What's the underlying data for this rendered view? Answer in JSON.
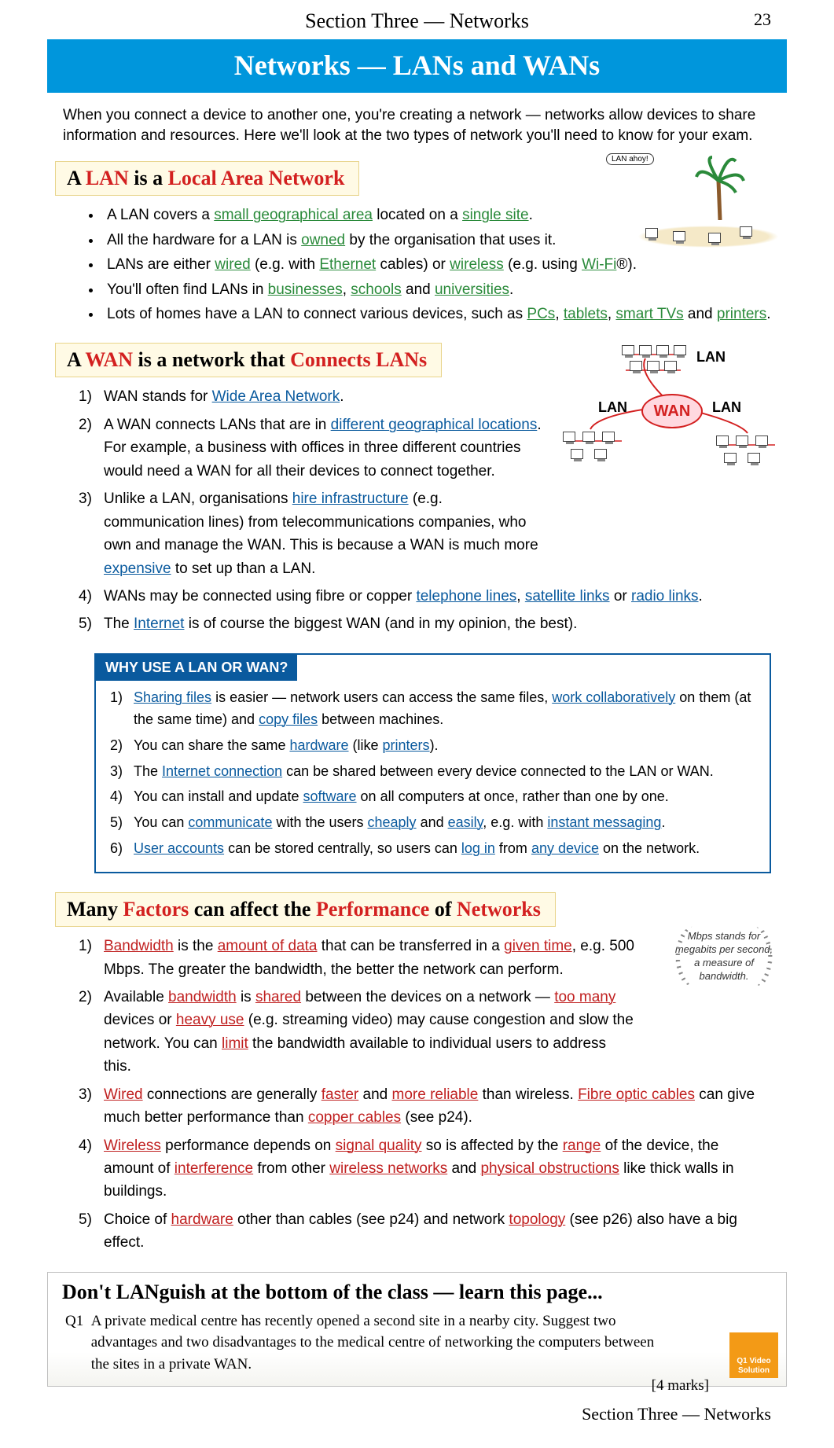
{
  "header": {
    "section": "Section Three — Networks",
    "page_num": "23"
  },
  "banner": "Networks — LANs and WANs",
  "intro": "When you connect a device to another one, you're creating a network — networks allow devices to share information and resources.  Here we'll look at the two types of network you'll need to know for your exam.",
  "lan": {
    "heading_pre": "A ",
    "heading_b1": "LAN",
    "heading_mid": " is a ",
    "heading_b2": "Local Area Network",
    "speech": "LAN ahoy!",
    "items": [
      {
        "parts": [
          {
            "t": "A LAN covers a "
          },
          {
            "t": "small geographical area",
            "c": "green-u"
          },
          {
            "t": " located on a "
          },
          {
            "t": "single site",
            "c": "green-u"
          },
          {
            "t": "."
          }
        ]
      },
      {
        "parts": [
          {
            "t": "All the hardware for a LAN is "
          },
          {
            "t": "owned",
            "c": "green-u"
          },
          {
            "t": " by the organisation that uses it."
          }
        ]
      },
      {
        "parts": [
          {
            "t": "LANs are either "
          },
          {
            "t": "wired",
            "c": "green-u"
          },
          {
            "t": " (e.g. with "
          },
          {
            "t": "Ethernet",
            "c": "green-u"
          },
          {
            "t": " cables) or "
          },
          {
            "t": "wireless",
            "c": "green-u"
          },
          {
            "t": " (e.g. using "
          },
          {
            "t": "Wi-Fi",
            "c": "green-u"
          },
          {
            "t": "®)."
          }
        ]
      },
      {
        "parts": [
          {
            "t": "You'll often find LANs in "
          },
          {
            "t": "businesses",
            "c": "green-u"
          },
          {
            "t": ", "
          },
          {
            "t": "schools",
            "c": "green-u"
          },
          {
            "t": " and "
          },
          {
            "t": "universities",
            "c": "green-u"
          },
          {
            "t": "."
          }
        ]
      },
      {
        "parts": [
          {
            "t": "Lots of homes have a LAN to connect various devices, such as "
          },
          {
            "t": "PCs",
            "c": "green-u"
          },
          {
            "t": ", "
          },
          {
            "t": "tablets",
            "c": "green-u"
          },
          {
            "t": ", "
          },
          {
            "t": "smart TVs",
            "c": "green-u"
          },
          {
            "t": " and "
          },
          {
            "t": "printers",
            "c": "green-u"
          },
          {
            "t": "."
          }
        ]
      }
    ]
  },
  "wan": {
    "heading_pre": "A ",
    "heading_b1": "WAN",
    "heading_mid": " is a network that ",
    "heading_b2": "Connects LANs",
    "cloud": "WAN",
    "lan_label": "LAN",
    "items": [
      {
        "n": "1)",
        "parts": [
          {
            "t": "WAN stands for "
          },
          {
            "t": "Wide Area Network",
            "c": "blue-u"
          },
          {
            "t": "."
          }
        ]
      },
      {
        "n": "2)",
        "parts": [
          {
            "t": "A WAN connects LANs that are in "
          },
          {
            "t": "different geographical locations",
            "c": "blue-u"
          },
          {
            "t": ". For example, a business with offices in three different countries would need a WAN for all their devices to connect together."
          }
        ]
      },
      {
        "n": "3)",
        "parts": [
          {
            "t": "Unlike a LAN, organisations "
          },
          {
            "t": "hire infrastructure",
            "c": "blue-u"
          },
          {
            "t": " (e.g. communication lines) from telecommunications companies, who own and manage the WAN. This is because a WAN is much more "
          },
          {
            "t": "expensive",
            "c": "blue-u"
          },
          {
            "t": " to set up than a LAN."
          }
        ]
      },
      {
        "n": "4)",
        "parts": [
          {
            "t": "WANs may be connected using fibre or copper "
          },
          {
            "t": "telephone lines",
            "c": "blue-u"
          },
          {
            "t": ", "
          },
          {
            "t": "satellite links",
            "c": "blue-u"
          },
          {
            "t": " or "
          },
          {
            "t": "radio links",
            "c": "blue-u"
          },
          {
            "t": "."
          }
        ]
      },
      {
        "n": "5)",
        "parts": [
          {
            "t": "The "
          },
          {
            "t": "Internet",
            "c": "blue-u"
          },
          {
            "t": " is of course the biggest WAN (and in my opinion, the best)."
          }
        ]
      }
    ]
  },
  "why": {
    "header": "WHY USE A LAN OR WAN?",
    "items": [
      {
        "n": "1)",
        "parts": [
          {
            "t": "Sharing files",
            "c": "blue-u"
          },
          {
            "t": " is easier — network users can access the same files, "
          },
          {
            "t": "work collaboratively",
            "c": "blue-u"
          },
          {
            "t": " on them (at the same time) and "
          },
          {
            "t": "copy files",
            "c": "blue-u"
          },
          {
            "t": " between machines."
          }
        ]
      },
      {
        "n": "2)",
        "parts": [
          {
            "t": "You can share the same "
          },
          {
            "t": "hardware",
            "c": "blue-u"
          },
          {
            "t": " (like "
          },
          {
            "t": "printers",
            "c": "blue-u"
          },
          {
            "t": ")."
          }
        ]
      },
      {
        "n": "3)",
        "parts": [
          {
            "t": "The "
          },
          {
            "t": "Internet connection",
            "c": "blue-u"
          },
          {
            "t": " can be shared between every device connected to the LAN or WAN."
          }
        ]
      },
      {
        "n": "4)",
        "parts": [
          {
            "t": "You can install and update "
          },
          {
            "t": "software",
            "c": "blue-u"
          },
          {
            "t": " on all computers at once, rather than one by one."
          }
        ]
      },
      {
        "n": "5)",
        "parts": [
          {
            "t": "You can "
          },
          {
            "t": "communicate",
            "c": "blue-u"
          },
          {
            "t": " with the users "
          },
          {
            "t": "cheaply",
            "c": "blue-u"
          },
          {
            "t": " and "
          },
          {
            "t": "easily",
            "c": "blue-u"
          },
          {
            "t": ", e.g. with "
          },
          {
            "t": "instant messaging",
            "c": "blue-u"
          },
          {
            "t": "."
          }
        ]
      },
      {
        "n": "6)",
        "parts": [
          {
            "t": "User accounts",
            "c": "blue-u"
          },
          {
            "t": " can be stored centrally, so users can "
          },
          {
            "t": "log in",
            "c": "blue-u"
          },
          {
            "t": " from "
          },
          {
            "t": "any device",
            "c": "blue-u"
          },
          {
            "t": " on the network."
          }
        ]
      }
    ]
  },
  "perf": {
    "heading_pre": "Many ",
    "heading_b1": "Factors",
    "heading_mid": " can affect the ",
    "heading_b2": "Performance",
    "heading_mid2": " of ",
    "heading_b3": "Networks",
    "aside": "Mbps stands for megabits per second, a measure of bandwidth.",
    "items": [
      {
        "n": "1)",
        "parts": [
          {
            "t": "Bandwidth",
            "c": "red-u"
          },
          {
            "t": " is the "
          },
          {
            "t": "amount of data",
            "c": "red-u"
          },
          {
            "t": " that can be transferred in a "
          },
          {
            "t": "given time",
            "c": "red-u"
          },
          {
            "t": ", e.g. 500 Mbps.  The greater the bandwidth, the better the network can perform."
          }
        ]
      },
      {
        "n": "2)",
        "parts": [
          {
            "t": "Available "
          },
          {
            "t": "bandwidth",
            "c": "red-u"
          },
          {
            "t": " is "
          },
          {
            "t": "shared",
            "c": "red-u"
          },
          {
            "t": " between the devices on a network — "
          },
          {
            "t": "too many",
            "c": "red-u"
          },
          {
            "t": " devices or "
          },
          {
            "t": "heavy use",
            "c": "red-u"
          },
          {
            "t": " (e.g. streaming video) may cause congestion and slow the network. You can "
          },
          {
            "t": "limit",
            "c": "red-u"
          },
          {
            "t": " the bandwidth available to individual users to address this."
          }
        ]
      },
      {
        "n": "3)",
        "parts": [
          {
            "t": "Wired",
            "c": "red-u"
          },
          {
            "t": " connections are generally "
          },
          {
            "t": "faster",
            "c": "red-u"
          },
          {
            "t": " and "
          },
          {
            "t": "more reliable",
            "c": "red-u"
          },
          {
            "t": " than wireless. "
          },
          {
            "t": "Fibre optic cables",
            "c": "red-u"
          },
          {
            "t": " can give much better performance than "
          },
          {
            "t": "copper cables",
            "c": "red-u"
          },
          {
            "t": " (see p24)."
          }
        ]
      },
      {
        "n": "4)",
        "parts": [
          {
            "t": "Wireless",
            "c": "red-u"
          },
          {
            "t": " performance depends on "
          },
          {
            "t": "signal quality",
            "c": "red-u"
          },
          {
            "t": " so is affected by the "
          },
          {
            "t": "range",
            "c": "red-u"
          },
          {
            "t": " of the device, the amount of "
          },
          {
            "t": "interference",
            "c": "red-u"
          },
          {
            "t": " from other "
          },
          {
            "t": "wireless networks",
            "c": "red-u"
          },
          {
            "t": " and "
          },
          {
            "t": "physical obstructions",
            "c": "red-u"
          },
          {
            "t": " like thick walls in buildings."
          }
        ]
      },
      {
        "n": "5)",
        "parts": [
          {
            "t": "Choice of "
          },
          {
            "t": "hardware",
            "c": "red-u"
          },
          {
            "t": " other than cables (see p24) and network "
          },
          {
            "t": "topology",
            "c": "red-u"
          },
          {
            "t": " (see p26) also have a big effect."
          }
        ]
      }
    ]
  },
  "qbox": {
    "title": "Don't LANguish at the bottom of the class — learn this page...",
    "q_label": "Q1",
    "q_text": "A private medical centre has recently opened a second site in a nearby city. Suggest two advantages and two disadvantages to the medical centre of networking the computers between the sites in a private WAN.",
    "marks": "[4 marks]",
    "badge": "Q1 Video Solution"
  },
  "footer": "Section Three — Networks",
  "colors": {
    "banner": "#0096dc",
    "heading_bg": "#fffae5",
    "red": "#d32020",
    "green": "#2a8a3a",
    "blue": "#0a5a9e",
    "badge": "#f39a16"
  }
}
